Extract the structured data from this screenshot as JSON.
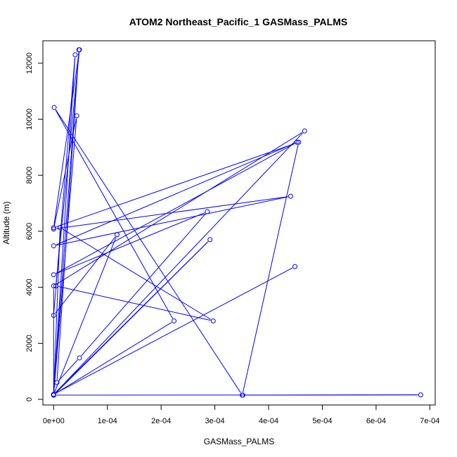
{
  "chart_data": {
    "type": "scatter",
    "title": "ATOM2 Northeast_Pacific_1 GASMass_PALMS",
    "xlabel": "GASMass_PALMS",
    "ylabel": "Altitude (m)",
    "xlim": [
      -2e-05,
      0.00071
    ],
    "ylim": [
      -200,
      12800
    ],
    "x_ticks": [
      0,
      0.0001,
      0.0002,
      0.0003,
      0.0004,
      0.0005,
      0.0006,
      0.0007
    ],
    "x_tick_labels": [
      "0e+00",
      "1e-04",
      "2e-04",
      "3e-04",
      "4e-04",
      "5e-04",
      "6e-04",
      "7e-04"
    ],
    "y_ticks": [
      0,
      2000,
      4000,
      6000,
      8000,
      10000,
      12000
    ],
    "y_tick_labels": [
      "0",
      "2000",
      "4000",
      "6000",
      "8000",
      "10000",
      "12000"
    ],
    "grid": false,
    "legend": "none",
    "series": [
      {
        "color": "#0000ff",
        "connected": true,
        "marker": "open-circle",
        "x": [
          0.000352,
          0.000683,
          0,
          4.7e-05,
          6e-06,
          4.8e-05,
          0.000286,
          0,
          0.000453,
          0,
          0.000441,
          0,
          4.3e-05,
          0,
          1.2e-05,
          0.000297,
          4e-06,
          4.8e-05,
          0,
          0.000456,
          0.000351,
          1e-06,
          0.000224,
          0,
          4e-05,
          0,
          0.000118,
          0,
          0.000467,
          0,
          0,
          0.000291,
          0,
          0.000449
        ],
        "y": [
          150,
          160,
          150,
          12480,
          600,
          1480,
          6700,
          4450,
          9180,
          5480,
          7250,
          6080,
          10120,
          160,
          6130,
          2800,
          4050,
          12480,
          6130,
          9180,
          150,
          10420,
          2800,
          170,
          12300,
          3000,
          5880,
          170,
          9580,
          4050,
          150,
          5700,
          180,
          4740
        ]
      }
    ]
  }
}
